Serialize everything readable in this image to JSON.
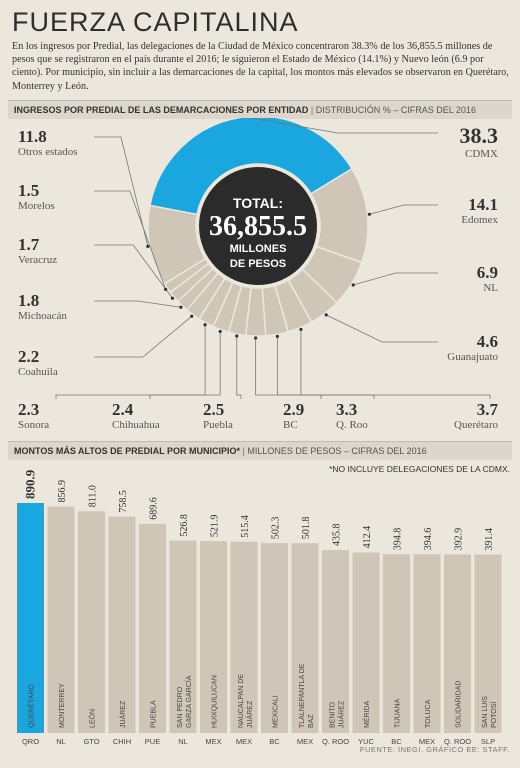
{
  "header": {
    "title": "FUERZA CAPITALINA",
    "intro": "En los ingresos por Predial, las delegaciones de la Ciudad de México concentraron 38.3% de los 36,855.5 millones de pesos que se registraron en el país durante el 2016; le siguieron el Estado de México (14.1%) y Nuevo león (6.9 por ciento). Por municipio, sin incluir a las demarcaciones de la capital, los montos más elevados se observaron en Querétaro, Monterrey y León."
  },
  "section1": {
    "title": "INGRESOS POR PREDIAL DE LAS DEMARCACIONES POR ENTIDAD",
    "subtitle": "DISTRIBUCIÓN % – CIFRAS DEL 2016"
  },
  "donut_center": {
    "line1": "TOTAL:",
    "line2": "36,855.5",
    "line3": "MILLONES",
    "line4": "DE PESOS"
  },
  "section2": {
    "title": "MONTOS MÁS ALTOS DE PREDIAL POR MUNICIPIO*",
    "subtitle": "MILLONES DE PESOS – CIFRAS DEL 2016",
    "note": "*NO INCLUYE DELEGACIONES DE LA CDMX."
  },
  "footer": "FUENTE: INEGI. GRÁFICO EE: STAFF.",
  "colors": {
    "highlight": "#1aa7e0",
    "neutral": "#d8d0c3",
    "neutral_dark": "#cfc6b8",
    "center": "#2b2b2b",
    "text": "#333333"
  },
  "chart_data": [
    {
      "type": "pie",
      "title": "INGRESOS POR PREDIAL DE LAS DEMARCACIONES POR ENTIDAD",
      "subtitle": "DISTRIBUCIÓN % – CIFRAS DEL 2016",
      "slices": [
        {
          "label": "CDMX",
          "value": 38.3
        },
        {
          "label": "Edomex",
          "value": 14.1
        },
        {
          "label": "NL",
          "value": 6.9
        },
        {
          "label": "Guanajuato",
          "value": 4.6
        },
        {
          "label": "Querétaro",
          "value": 3.7
        },
        {
          "label": "Q. Roo",
          "value": 3.3
        },
        {
          "label": "BC",
          "value": 2.9
        },
        {
          "label": "Puebla",
          "value": 2.5
        },
        {
          "label": "Chihuahua",
          "value": 2.4
        },
        {
          "label": "Sonora",
          "value": 2.3
        },
        {
          "label": "Coahuila",
          "value": 2.2
        },
        {
          "label": "Michoacán",
          "value": 1.8
        },
        {
          "label": "Veracruz",
          "value": 1.7
        },
        {
          "label": "Morelos",
          "value": 1.5
        },
        {
          "label": "Otros estados",
          "value": 11.8
        }
      ],
      "highlight": "CDMX"
    },
    {
      "type": "bar",
      "title": "MONTOS MÁS ALTOS DE PREDIAL POR MUNICIPIO*",
      "subtitle": "MILLONES DE PESOS – CIFRAS DEL 2016",
      "categories": [
        "QUERÉTARO",
        "MONTERREY",
        "LEÓN",
        "JUÁREZ",
        "PUEBLA",
        "SAN PEDRO GARZA GARCÍA",
        "HUIXQUILUCAN",
        "NAUCALPAN DE JUÁREZ",
        "MEXICALI",
        "TLALNEPANTLA DE BAZ",
        "BENITO JUÁREZ",
        "MÉRIDA",
        "TIJUANA",
        "TOLUCA",
        "SOLIDARIDAD",
        "SAN LUIS POTOSÍ"
      ],
      "states": [
        "QRO",
        "NL",
        "GTO",
        "CHIH",
        "PUE",
        "NL",
        "MEX",
        "MEX",
        "BC",
        "MEX",
        "Q. ROO",
        "YUC",
        "BC",
        "MEX",
        "Q. ROO",
        "SLP"
      ],
      "values": [
        890.9,
        856.9,
        811.0,
        758.5,
        689.6,
        526.8,
        521.9,
        515.4,
        502.3,
        501.8,
        435.8,
        412.4,
        394.8,
        394.6,
        392.9,
        391.4
      ],
      "value_labels": [
        "890.9",
        "856.9",
        "811.0",
        "758.5",
        "689.6",
        "526.8",
        "521.9",
        "515.4",
        "502.3",
        "501.8",
        "435.8",
        "412.4",
        "394.8",
        "394.6",
        "392.9",
        "391.4"
      ],
      "highlight_index": 0,
      "ylim": [
        0,
        1000
      ]
    }
  ]
}
